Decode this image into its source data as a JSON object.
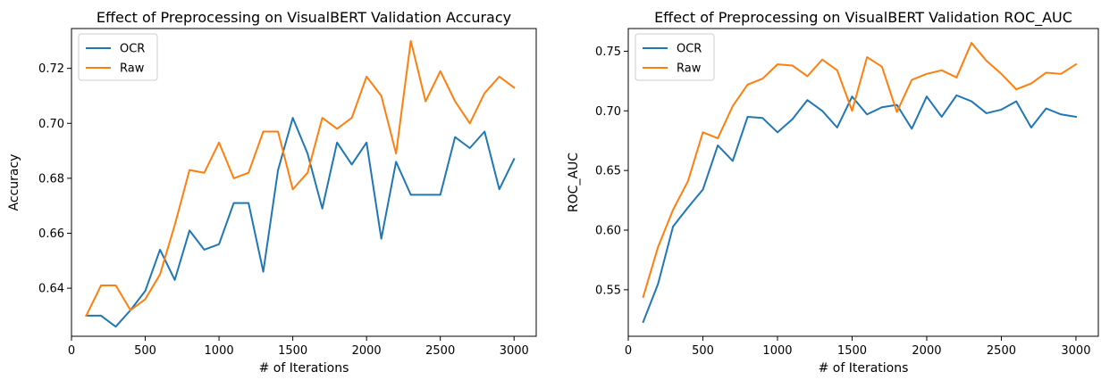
{
  "chart_data": [
    {
      "type": "line",
      "title": "Effect of Preprocessing on VisualBERT Validation Accuracy",
      "xlabel": "# of Iterations",
      "ylabel": "Accuracy",
      "xlim": [
        0,
        3150
      ],
      "ylim": [
        0.6225,
        0.7345
      ],
      "xticks": [
        0,
        500,
        1000,
        1500,
        2000,
        2500,
        3000
      ],
      "xtick_labels": [
        "0",
        "500",
        "1000",
        "1500",
        "2000",
        "2500",
        "3000"
      ],
      "yticks": [
        0.64,
        0.66,
        0.68,
        0.7,
        0.72
      ],
      "ytick_labels": [
        "0.64",
        "0.66",
        "0.68",
        "0.70",
        "0.72"
      ],
      "grid": false,
      "legend": "top-left",
      "x": [
        100,
        200,
        300,
        400,
        500,
        600,
        700,
        800,
        900,
        1000,
        1100,
        1200,
        1300,
        1400,
        1500,
        1600,
        1700,
        1800,
        1900,
        2000,
        2100,
        2200,
        2300,
        2400,
        2500,
        2600,
        2700,
        2800,
        2900,
        3000
      ],
      "series": [
        {
          "name": "OCR",
          "color": "#1f77b4",
          "values": [
            0.63,
            0.63,
            0.626,
            0.632,
            0.639,
            0.654,
            0.643,
            0.661,
            0.654,
            0.656,
            0.671,
            0.671,
            0.646,
            0.683,
            0.702,
            0.689,
            0.669,
            0.693,
            0.685,
            0.693,
            0.658,
            0.686,
            0.674,
            0.674,
            0.674,
            0.695,
            0.691,
            0.697,
            0.676,
            0.687
          ]
        },
        {
          "name": "Raw",
          "color": "#ff7f0e",
          "values": [
            0.63,
            0.641,
            0.641,
            0.632,
            0.636,
            0.645,
            0.663,
            0.683,
            0.682,
            0.693,
            0.68,
            0.682,
            0.697,
            0.697,
            0.676,
            0.682,
            0.702,
            0.698,
            0.702,
            0.717,
            0.71,
            0.689,
            0.73,
            0.708,
            0.719,
            0.708,
            0.7,
            0.711,
            0.717,
            0.713
          ]
        }
      ]
    },
    {
      "type": "line",
      "title": "Effect of Preprocessing on VisualBERT Validation ROC_AUC",
      "xlabel": "# of Iterations",
      "ylabel": "ROC_AUC",
      "xlim": [
        0,
        3150
      ],
      "ylim": [
        0.511,
        0.769
      ],
      "xticks": [
        0,
        500,
        1000,
        1500,
        2000,
        2500,
        3000
      ],
      "xtick_labels": [
        "0",
        "500",
        "1000",
        "1500",
        "2000",
        "2500",
        "3000"
      ],
      "yticks": [
        0.55,
        0.6,
        0.65,
        0.7,
        0.75
      ],
      "ytick_labels": [
        "0.55",
        "0.60",
        "0.65",
        "0.70",
        "0.75"
      ],
      "grid": false,
      "legend": "top-left",
      "x": [
        100,
        200,
        300,
        400,
        500,
        600,
        700,
        800,
        900,
        1000,
        1100,
        1200,
        1300,
        1400,
        1500,
        1600,
        1700,
        1800,
        1900,
        2000,
        2100,
        2200,
        2300,
        2400,
        2500,
        2600,
        2700,
        2800,
        2900,
        3000
      ],
      "series": [
        {
          "name": "OCR",
          "color": "#1f77b4",
          "values": [
            0.523,
            0.555,
            0.603,
            0.619,
            0.634,
            0.671,
            0.658,
            0.695,
            0.694,
            0.682,
            0.693,
            0.709,
            0.7,
            0.686,
            0.712,
            0.697,
            0.703,
            0.705,
            0.685,
            0.712,
            0.695,
            0.713,
            0.708,
            0.698,
            0.701,
            0.708,
            0.686,
            0.702,
            0.697,
            0.695
          ]
        },
        {
          "name": "Raw",
          "color": "#ff7f0e",
          "values": [
            0.544,
            0.586,
            0.617,
            0.641,
            0.682,
            0.677,
            0.704,
            0.722,
            0.727,
            0.739,
            0.738,
            0.729,
            0.743,
            0.734,
            0.7,
            0.745,
            0.737,
            0.699,
            0.726,
            0.731,
            0.734,
            0.728,
            0.757,
            0.742,
            0.731,
            0.718,
            0.723,
            0.732,
            0.731,
            0.739
          ]
        }
      ]
    }
  ]
}
